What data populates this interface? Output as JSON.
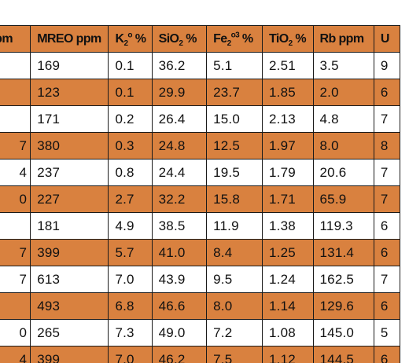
{
  "table": {
    "headers": [
      {
        "base": "ppm",
        "sub": "",
        "tail": ""
      },
      {
        "base": "MREO ppm",
        "sub": "",
        "tail": ""
      },
      {
        "base": "K",
        "sub": "2",
        "sup": "o",
        "tail": " %"
      },
      {
        "base": "SiO",
        "sub": "2",
        "tail": " %"
      },
      {
        "base": "Fe",
        "sub": "2",
        "sup": "o3",
        "tail": " %"
      },
      {
        "base": "TiO",
        "sub": "2",
        "tail": " %"
      },
      {
        "base": "Rb ppm",
        "sub": "",
        "tail": ""
      },
      {
        "base": "U",
        "sub": "",
        "tail": ""
      }
    ],
    "rows": [
      {
        "band": false,
        "cells": [
          "",
          "169",
          "0.1",
          "36.2",
          "5.1",
          "2.51",
          "3.5",
          "9"
        ]
      },
      {
        "band": true,
        "cells": [
          "",
          "123",
          "0.1",
          "29.9",
          "23.7",
          "1.85",
          "2.0",
          "6"
        ]
      },
      {
        "band": false,
        "cells": [
          "",
          "171",
          "0.2",
          "26.4",
          "15.0",
          "2.13",
          "4.8",
          "7"
        ]
      },
      {
        "band": true,
        "cells": [
          "7",
          "380",
          "0.3",
          "24.8",
          "12.5",
          "1.97",
          "8.0",
          "8"
        ]
      },
      {
        "band": false,
        "cells": [
          "4",
          "237",
          "0.8",
          "24.4",
          "19.5",
          "1.79",
          "20.6",
          "7"
        ]
      },
      {
        "band": true,
        "cells": [
          "0",
          "227",
          "2.7",
          "32.2",
          "15.8",
          "1.71",
          "65.9",
          "7"
        ]
      },
      {
        "band": false,
        "cells": [
          "",
          "181",
          "4.9",
          "38.5",
          "11.9",
          "1.38",
          "119.3",
          "6"
        ]
      },
      {
        "band": true,
        "cells": [
          "7",
          "399",
          "5.7",
          "41.0",
          "8.4",
          "1.25",
          "131.4",
          "6"
        ]
      },
      {
        "band": false,
        "cells": [
          "7",
          "613",
          "7.0",
          "43.9",
          "9.5",
          "1.24",
          "162.5",
          "7"
        ]
      },
      {
        "band": true,
        "cells": [
          "",
          "493",
          "6.8",
          "46.6",
          "8.0",
          "1.14",
          "129.6",
          "6"
        ]
      },
      {
        "band": false,
        "cells": [
          "0",
          "265",
          "7.3",
          "49.0",
          "7.2",
          "1.08",
          "145.0",
          "5"
        ]
      },
      {
        "band": true,
        "cells": [
          "4",
          "399",
          "7.0",
          "46.2",
          "7.5",
          "1.12",
          "144.5",
          "6"
        ]
      }
    ]
  },
  "colors": {
    "band": "#d9813f",
    "plain": "#ffffff",
    "grid": "#1a1a1a",
    "text": "#111111"
  }
}
